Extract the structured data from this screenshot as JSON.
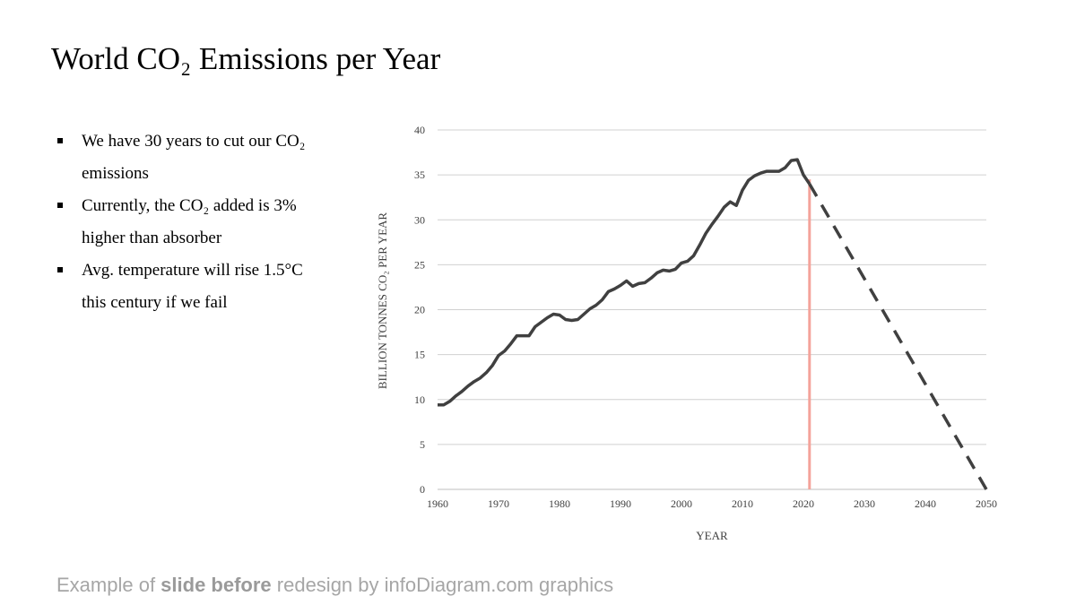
{
  "slide": {
    "title": "World CO₂ Emissions per Year",
    "bullets": [
      {
        "line1": "We have 30 years to cut our CO₂",
        "line2": "emissions"
      },
      {
        "line1": "Currently, the CO₂ added is  3%",
        "line2": "higher than absorber"
      },
      {
        "line1": "Avg. temperature will rise 1.5°C",
        "line2": "this century  if we fail"
      }
    ]
  },
  "footer": {
    "prefix": "Example of ",
    "bold": "slide before",
    "suffix": " redesign by infoDiagram.com graphics"
  },
  "colors": {
    "line": "#404040",
    "marker": "#f4a39b",
    "grid": "#d0d0d0",
    "axis_text": "#404040"
  },
  "chart_data": {
    "type": "line",
    "title": "",
    "xlabel": "YEAR",
    "ylabel": "BILLION TONNES CO₂ PER YEAR",
    "xlim": [
      1960,
      2050
    ],
    "ylim": [
      0,
      40
    ],
    "x_ticks": [
      1960,
      1970,
      1980,
      1990,
      2000,
      2010,
      2020,
      2030,
      2040,
      2050
    ],
    "y_ticks": [
      0,
      5,
      10,
      15,
      20,
      25,
      30,
      35,
      40
    ],
    "grid": true,
    "series": [
      {
        "style": "solid",
        "x": [
          1960,
          1961,
          1962,
          1963,
          1964,
          1965,
          1966,
          1967,
          1968,
          1969,
          1970,
          1971,
          1972,
          1973,
          1974,
          1975,
          1976,
          1977,
          1978,
          1979,
          1980,
          1981,
          1982,
          1983,
          1984,
          1985,
          1986,
          1987,
          1988,
          1989,
          1990,
          1991,
          1992,
          1993,
          1994,
          1995,
          1996,
          1997,
          1998,
          1999,
          2000,
          2001,
          2002,
          2003,
          2004,
          2005,
          2006,
          2007,
          2008,
          2009,
          2010,
          2011,
          2012,
          2013,
          2014,
          2015,
          2016,
          2017,
          2018,
          2019,
          2020,
          2021
        ],
        "y": [
          9.4,
          9.4,
          9.8,
          10.4,
          10.9,
          11.5,
          12.0,
          12.4,
          13.0,
          13.8,
          14.9,
          15.4,
          16.2,
          17.1,
          17.1,
          17.1,
          18.1,
          18.6,
          19.1,
          19.5,
          19.4,
          18.9,
          18.8,
          18.9,
          19.5,
          20.1,
          20.5,
          21.1,
          22.0,
          22.3,
          22.7,
          23.2,
          22.6,
          22.9,
          23.0,
          23.5,
          24.1,
          24.4,
          24.3,
          24.5,
          25.2,
          25.4,
          26.0,
          27.2,
          28.5,
          29.5,
          30.4,
          31.4,
          32.0,
          31.6,
          33.3,
          34.4,
          34.9,
          35.2,
          35.4,
          35.4,
          35.4,
          35.8,
          36.6,
          36.7,
          35.0,
          34.0
        ]
      },
      {
        "style": "dashed",
        "x": [
          2021,
          2050
        ],
        "y": [
          34.0,
          0
        ]
      }
    ],
    "marker_year": 2021
  }
}
